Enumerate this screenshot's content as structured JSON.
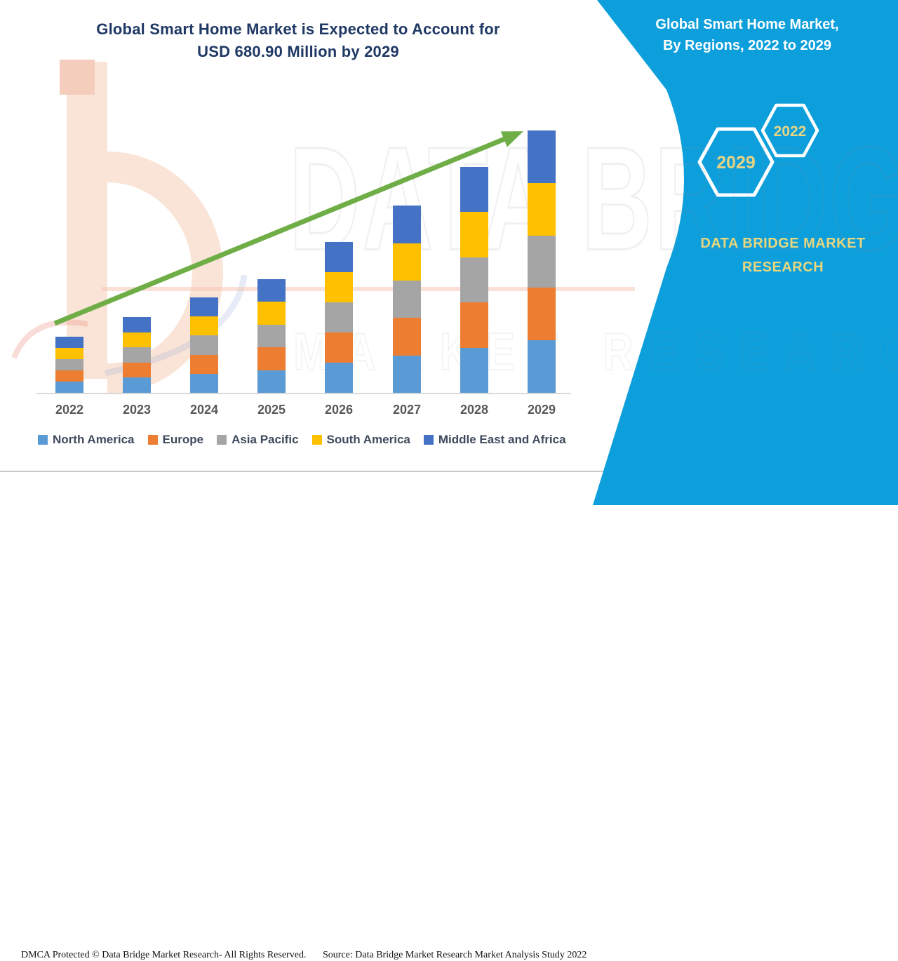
{
  "title": {
    "line1": "Global Smart Home Market is Expected to Account for",
    "line2": "USD 680.90 Million by 2029"
  },
  "sidebar": {
    "title_line1": "Global Smart Home Market,",
    "title_line2": "By Regions, 2022 to 2029",
    "hexagons": [
      {
        "label": "2029"
      },
      {
        "label": "2022"
      }
    ],
    "brand_line1": "DATA BRIDGE MARKET",
    "brand_line2": "RESEARCH",
    "background_color": "#0C9FDC",
    "accent_text_color": "#E9D57E"
  },
  "watermark": {
    "brand_word1": "DATA BRIDGE",
    "brand_word2": "MARKET RESEARCH",
    "logo_letter": "b"
  },
  "footer": {
    "dmca": "DMCA Protected © Data Bridge Market Research- All Rights Reserved.",
    "source": "Source: Data Bridge Market Research Market Analysis Study 2022"
  },
  "chart_data": {
    "type": "bar",
    "stacked": true,
    "title": "Global Smart Home Market is Expected to Account for USD 680.90 Million by 2029",
    "unit": "USD Million",
    "categories": [
      "2022",
      "2023",
      "2024",
      "2025",
      "2026",
      "2027",
      "2028",
      "2029"
    ],
    "totals_musd_estimated": [
      145.7,
      196.6,
      247.6,
      295.0,
      391.4,
      486.1,
      586.3,
      680.9
    ],
    "final_value_label": "USD 680.90 Million by 2029",
    "series": [
      {
        "name": "North America",
        "color": "#5B9BD5",
        "values": [
          29.1,
          39.3,
          49.5,
          59.0,
          78.3,
          97.2,
          117.3,
          136.2
        ]
      },
      {
        "name": "Europe",
        "color": "#ED7D31",
        "values": [
          29.1,
          39.3,
          49.5,
          59.0,
          78.3,
          97.2,
          117.3,
          136.2
        ]
      },
      {
        "name": "Asia Pacific",
        "color": "#A5A5A5",
        "values": [
          29.1,
          39.3,
          49.5,
          59.0,
          78.3,
          97.2,
          117.3,
          136.2
        ]
      },
      {
        "name": "South America",
        "color": "#FFC000",
        "values": [
          29.1,
          39.3,
          49.5,
          59.0,
          78.3,
          97.2,
          117.3,
          136.2
        ]
      },
      {
        "name": "Middle East and Africa",
        "color": "#4472C4",
        "values": [
          29.1,
          39.3,
          49.5,
          59.0,
          78.3,
          97.2,
          117.3,
          136.2
        ]
      }
    ],
    "legend_position": "bottom",
    "gridlines": false,
    "trend_arrow": true,
    "axis_baseline_y": "categories axis only, no value axis shown",
    "note": "Values estimated from bar heights; each region appears as an equal fifth of the yearly total."
  }
}
